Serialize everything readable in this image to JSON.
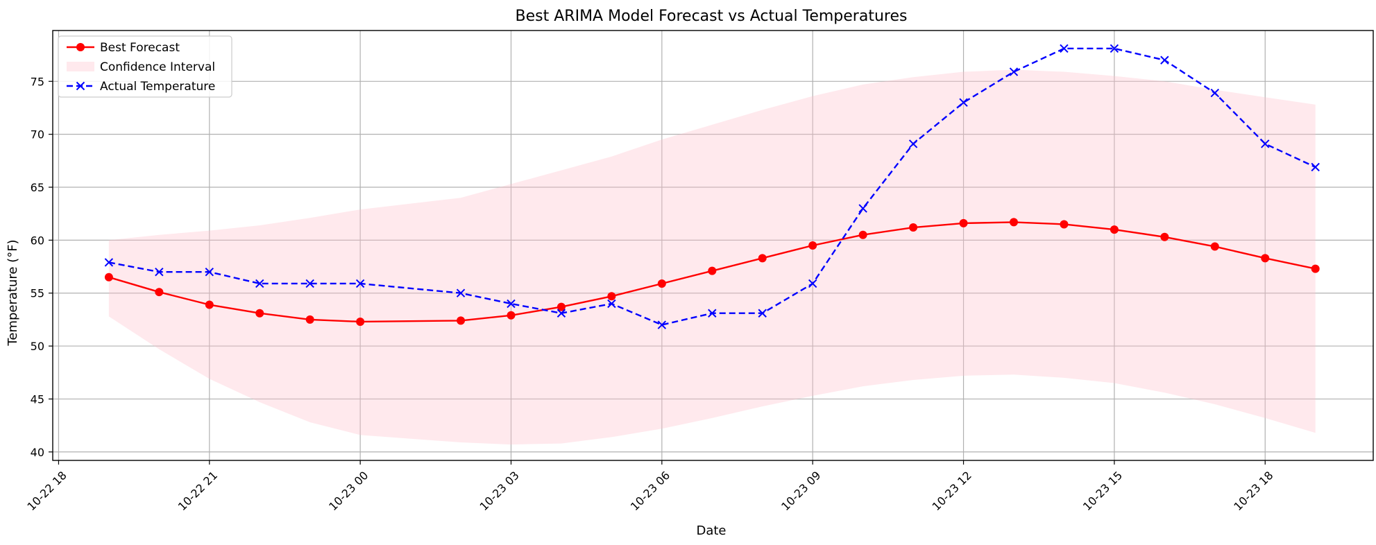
{
  "chart_data": {
    "type": "line",
    "title": "Best ARIMA Model Forecast vs Actual Temperatures",
    "xlabel": "Date",
    "ylabel": "Temperature (°F)",
    "x_ticks": [
      {
        "hour": 0,
        "label": "10-22 18"
      },
      {
        "hour": 3,
        "label": "10-22 21"
      },
      {
        "hour": 6,
        "label": "10-23 00"
      },
      {
        "hour": 9,
        "label": "10-23 03"
      },
      {
        "hour": 12,
        "label": "10-23 06"
      },
      {
        "hour": 15,
        "label": "10-23 09"
      },
      {
        "hour": 18,
        "label": "10-23 12"
      },
      {
        "hour": 21,
        "label": "10-23 15"
      },
      {
        "hour": 24,
        "label": "10-23 18"
      }
    ],
    "y_ticks": [
      40,
      45,
      50,
      55,
      60,
      65,
      70,
      75
    ],
    "xlim": [
      "10-22 17:53",
      "10-23 20:09"
    ],
    "ylim": [
      39.2,
      79.8
    ],
    "grid": true,
    "legend_position": "upper-left",
    "series": [
      {
        "name": "Best Forecast",
        "color": "#ff0000",
        "line_style": "solid",
        "marker": "circle",
        "points": [
          [
            "10-22 19:00",
            56.5
          ],
          [
            "10-22 20:00",
            55.1
          ],
          [
            "10-22 21:00",
            53.9
          ],
          [
            "10-22 22:00",
            53.1
          ],
          [
            "10-22 23:00",
            52.5
          ],
          [
            "10-23 00:00",
            52.3
          ],
          [
            "10-23 02:00",
            52.4
          ],
          [
            "10-23 03:00",
            52.9
          ],
          [
            "10-23 04:00",
            53.7
          ],
          [
            "10-23 05:00",
            54.7
          ],
          [
            "10-23 06:00",
            55.9
          ],
          [
            "10-23 07:00",
            57.1
          ],
          [
            "10-23 08:00",
            58.3
          ],
          [
            "10-23 09:00",
            59.5
          ],
          [
            "10-23 10:00",
            60.5
          ],
          [
            "10-23 11:00",
            61.2
          ],
          [
            "10-23 12:00",
            61.6
          ],
          [
            "10-23 13:00",
            61.7
          ],
          [
            "10-23 14:00",
            61.5
          ],
          [
            "10-23 15:00",
            61.0
          ],
          [
            "10-23 16:00",
            60.3
          ],
          [
            "10-23 17:00",
            59.4
          ],
          [
            "10-23 18:00",
            58.3
          ],
          [
            "10-23 19:00",
            57.3
          ]
        ]
      },
      {
        "name": "Actual Temperature",
        "color": "#0000ff",
        "line_style": "dashed",
        "marker": "x",
        "points": [
          [
            "10-22 19:00",
            57.9
          ],
          [
            "10-22 20:00",
            57.0
          ],
          [
            "10-22 21:00",
            57.0
          ],
          [
            "10-22 22:00",
            55.9
          ],
          [
            "10-22 23:00",
            55.9
          ],
          [
            "10-23 00:00",
            55.9
          ],
          [
            "10-23 02:00",
            55.0
          ],
          [
            "10-23 03:00",
            54.0
          ],
          [
            "10-23 04:00",
            53.1
          ],
          [
            "10-23 05:00",
            54.0
          ],
          [
            "10-23 06:00",
            52.0
          ],
          [
            "10-23 07:00",
            53.1
          ],
          [
            "10-23 08:00",
            53.1
          ],
          [
            "10-23 09:00",
            55.9
          ],
          [
            "10-23 10:00",
            63.0
          ],
          [
            "10-23 11:00",
            69.1
          ],
          [
            "10-23 12:00",
            73.0
          ],
          [
            "10-23 13:00",
            75.9
          ],
          [
            "10-23 14:00",
            78.1
          ],
          [
            "10-23 15:00",
            78.1
          ],
          [
            "10-23 16:00",
            77.0
          ],
          [
            "10-23 17:00",
            73.9
          ],
          [
            "10-23 18:00",
            69.1
          ],
          [
            "10-23 19:00",
            66.9
          ]
        ]
      }
    ],
    "band": {
      "name": "Confidence Interval",
      "color": "#ffc0cb",
      "opacity": 0.35,
      "points": [
        [
          "10-22 19:00",
          52.8,
          60.0
        ],
        [
          "10-22 20:00",
          49.7,
          60.5
        ],
        [
          "10-22 21:00",
          46.9,
          60.9
        ],
        [
          "10-22 22:00",
          44.7,
          61.4
        ],
        [
          "10-22 23:00",
          42.8,
          62.1
        ],
        [
          "10-23 00:00",
          41.6,
          62.9
        ],
        [
          "10-23 02:00",
          40.9,
          64.0
        ],
        [
          "10-23 03:00",
          40.7,
          65.3
        ],
        [
          "10-23 04:00",
          40.8,
          66.6
        ],
        [
          "10-23 05:00",
          41.4,
          67.9
        ],
        [
          "10-23 06:00",
          42.2,
          69.5
        ],
        [
          "10-23 07:00",
          43.2,
          70.9
        ],
        [
          "10-23 08:00",
          44.3,
          72.3
        ],
        [
          "10-23 09:00",
          45.3,
          73.6
        ],
        [
          "10-23 10:00",
          46.2,
          74.7
        ],
        [
          "10-23 11:00",
          46.8,
          75.4
        ],
        [
          "10-23 12:00",
          47.2,
          75.9
        ],
        [
          "10-23 13:00",
          47.3,
          76.1
        ],
        [
          "10-23 14:00",
          47.0,
          75.9
        ],
        [
          "10-23 15:00",
          46.5,
          75.5
        ],
        [
          "10-23 16:00",
          45.6,
          75.0
        ],
        [
          "10-23 17:00",
          44.5,
          74.2
        ],
        [
          "10-23 18:00",
          43.2,
          73.5
        ],
        [
          "10-23 19:00",
          41.8,
          72.8
        ]
      ]
    }
  }
}
